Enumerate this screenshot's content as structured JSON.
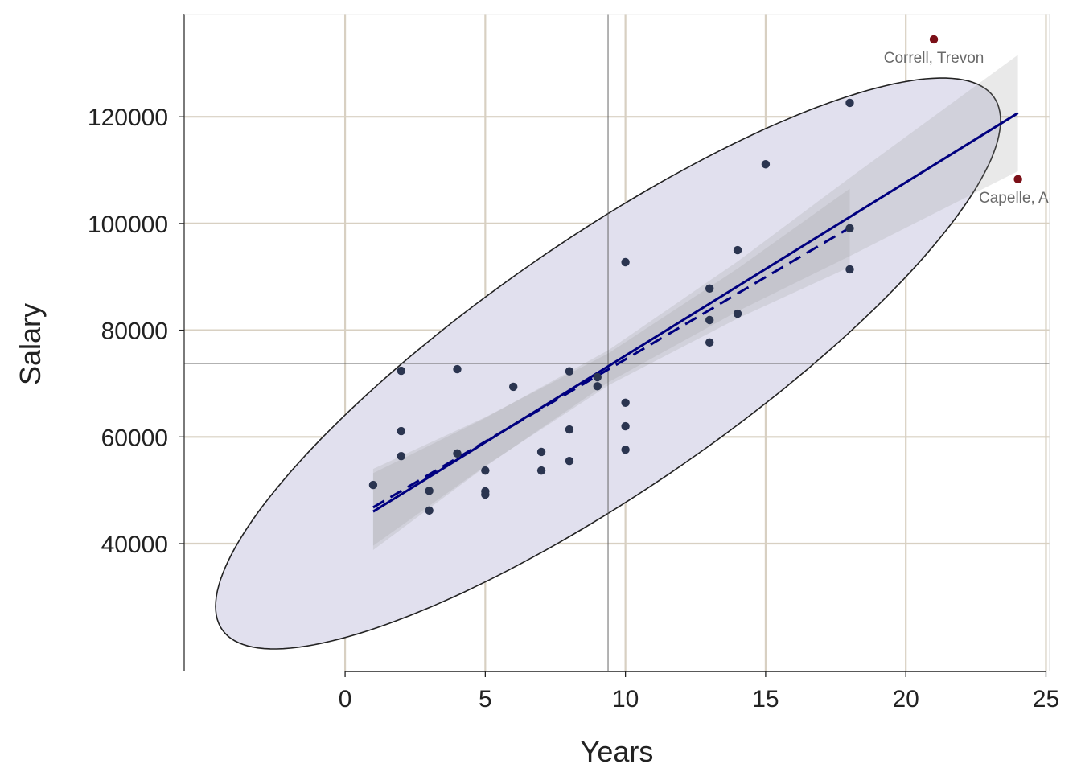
{
  "chart_data": {
    "type": "scatter",
    "title": "",
    "xlabel": "Years",
    "ylabel": "Salary",
    "xlim": [
      -5.74,
      25.13
    ],
    "ylim": [
      16040,
      139170
    ],
    "grid": true,
    "x_ticks": [
      0,
      5,
      10,
      15,
      20,
      25
    ],
    "x_tick_labels": [
      "0",
      "5",
      "10",
      "15",
      "20",
      "25"
    ],
    "y_ticks": [
      40000,
      60000,
      80000,
      100000,
      120000
    ],
    "y_tick_labels": [
      "40000",
      "60000",
      "80000",
      "100000",
      "120000"
    ],
    "points": [
      [
        1,
        51000
      ],
      [
        2,
        72400
      ],
      [
        2,
        61100
      ],
      [
        2,
        56400
      ],
      [
        3,
        49900
      ],
      [
        3,
        46200
      ],
      [
        4,
        72700
      ],
      [
        4,
        56900
      ],
      [
        5,
        53700
      ],
      [
        5,
        49800
      ],
      [
        5,
        49200
      ],
      [
        6,
        69400
      ],
      [
        7,
        57200
      ],
      [
        7,
        53700
      ],
      [
        8,
        72300
      ],
      [
        8,
        61400
      ],
      [
        8,
        55500
      ],
      [
        9,
        71200
      ],
      [
        9,
        69500
      ],
      [
        10,
        92750
      ],
      [
        10,
        66400
      ],
      [
        10,
        62000
      ],
      [
        10,
        57600
      ],
      [
        13,
        87800
      ],
      [
        13,
        81900
      ],
      [
        13,
        77700
      ],
      [
        14,
        95000
      ],
      [
        14,
        83100
      ],
      [
        15,
        111100
      ],
      [
        18,
        122600
      ],
      [
        18,
        99100
      ],
      [
        18,
        91400
      ]
    ],
    "outliers": [
      {
        "x": 21,
        "y": 134500,
        "label": "Correll, Trevon"
      },
      {
        "x": 24,
        "y": 108300,
        "label": "Capelle, Ad"
      }
    ],
    "regression_all": {
      "x": [
        1,
        24
      ],
      "y": [
        46000,
        120700
      ],
      "style": "solid"
    },
    "regression_without_outliers": {
      "x": [
        1,
        18
      ],
      "y": [
        46800,
        99200
      ],
      "style": "dashed"
    },
    "confidence_band_all": [
      [
        1,
        38800,
        53200
      ],
      [
        5,
        54430,
        63550
      ],
      [
        9.4,
        70280,
        76280
      ],
      [
        14,
        83550,
        92890
      ],
      [
        18,
        93880,
        108560
      ],
      [
        24,
        109800,
        131600
      ]
    ],
    "confidence_band_without_outliers": [
      [
        1,
        39600,
        54000
      ],
      [
        5,
        54570,
        63690
      ],
      [
        9.4,
        69690,
        75690
      ],
      [
        14,
        82200,
        91540
      ],
      [
        18,
        91850,
        106530
      ]
    ],
    "mean_x": 9.38,
    "mean_y": 73760,
    "data_ellipse": {
      "center": [
        9.38,
        73760
      ],
      "x_half_extent": 14.0,
      "y_half_extent": 53500,
      "correlation": 0.851
    },
    "colors": {
      "points": "#2b3550",
      "outliers": "#7b0f17",
      "regression": "#00007f",
      "ellipse_fill": "#e1e0ee",
      "ellipse_stroke": "#222222",
      "band": "#9a9a9a",
      "grid": "#d8d0c2",
      "mean_lines": "#666666"
    }
  }
}
